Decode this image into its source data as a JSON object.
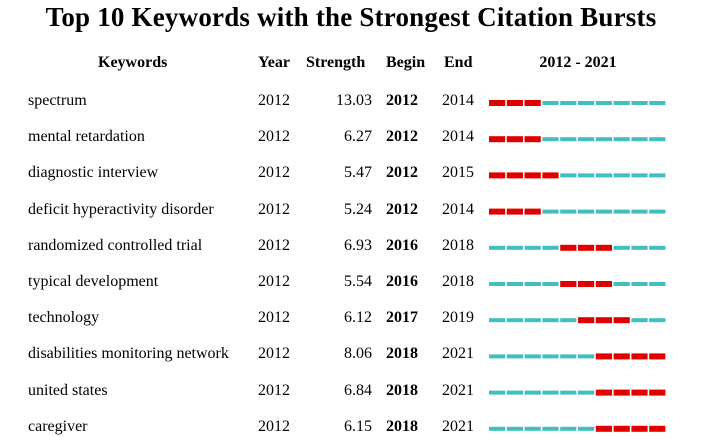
{
  "title": "Top 10 Keywords with the Strongest Citation Bursts",
  "headers": {
    "keywords": "Keywords",
    "year": "Year",
    "strength": "Strength",
    "begin": "Begin",
    "end": "End",
    "range": "2012 - 2021"
  },
  "colors": {
    "burst": "#e00000",
    "baseline": "#3fbfbf"
  },
  "chart_data": {
    "type": "table",
    "title": "Top 10 Keywords with the Strongest Citation Bursts",
    "timeline": {
      "start": 2012,
      "end": 2021
    },
    "columns": [
      "Keywords",
      "Year",
      "Strength",
      "Begin",
      "End",
      "2012 - 2021"
    ],
    "rows": [
      {
        "keyword": "spectrum",
        "year": "2012",
        "strength": "13.03",
        "begin": "2012",
        "end": "2014"
      },
      {
        "keyword": "mental retardation",
        "year": "2012",
        "strength": "6.27",
        "begin": "2012",
        "end": "2014"
      },
      {
        "keyword": "diagnostic interview",
        "year": "2012",
        "strength": "5.47",
        "begin": "2012",
        "end": "2015"
      },
      {
        "keyword": "deficit hyperactivity disorder",
        "year": "2012",
        "strength": "5.24",
        "begin": "2012",
        "end": "2014"
      },
      {
        "keyword": "randomized controlled trial",
        "year": "2012",
        "strength": "6.93",
        "begin": "2016",
        "end": "2018"
      },
      {
        "keyword": "typical development",
        "year": "2012",
        "strength": "5.54",
        "begin": "2016",
        "end": "2018"
      },
      {
        "keyword": "technology",
        "year": "2012",
        "strength": "6.12",
        "begin": "2017",
        "end": "2019"
      },
      {
        "keyword": "disabilities monitoring network",
        "year": "2012",
        "strength": "8.06",
        "begin": "2018",
        "end": "2021"
      },
      {
        "keyword": "united states",
        "year": "2012",
        "strength": "6.84",
        "begin": "2018",
        "end": "2021"
      },
      {
        "keyword": "caregiver",
        "year": "2012",
        "strength": "6.15",
        "begin": "2018",
        "end": "2021"
      }
    ]
  }
}
